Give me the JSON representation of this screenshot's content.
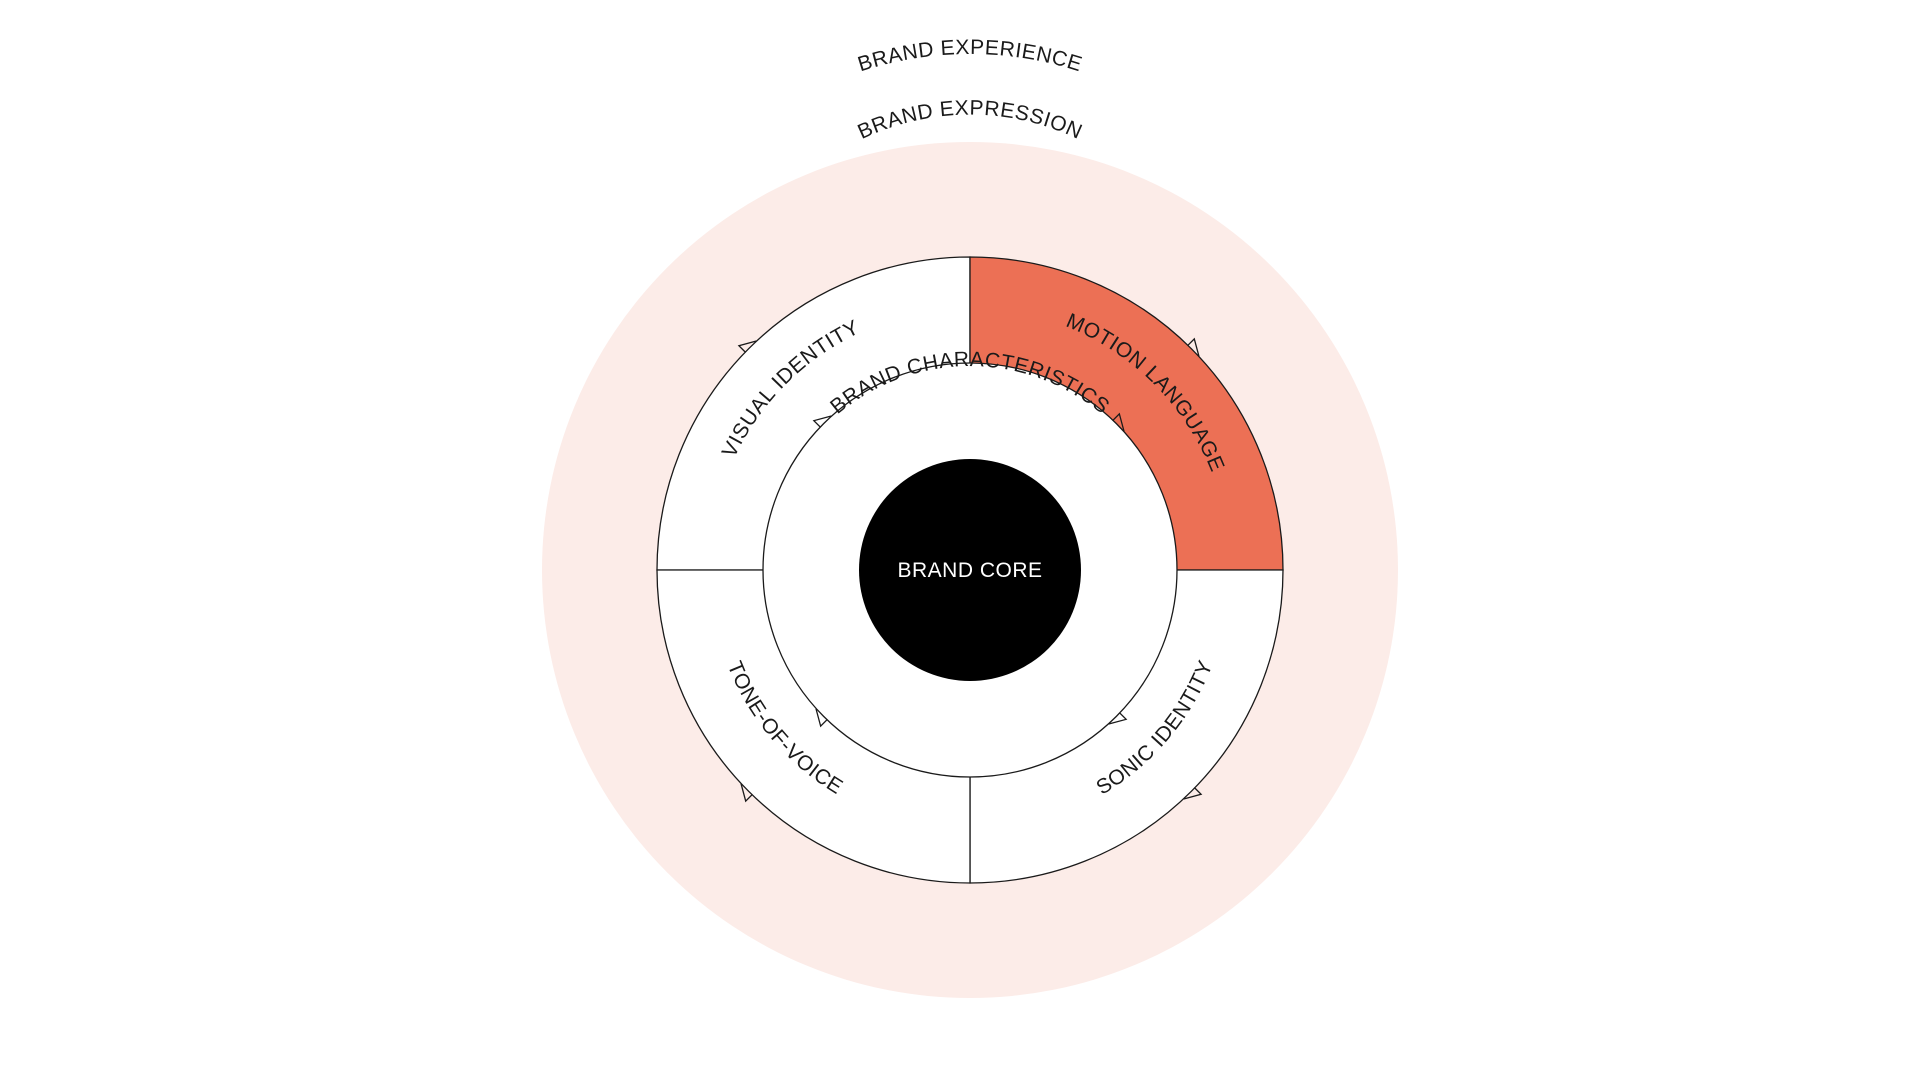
{
  "diagram": {
    "outer_label": "BRAND EXPERIENCE",
    "expression_label": "BRAND EXPRESSION",
    "characteristics_label": "BRAND CHARACTERISTICS",
    "core_label": "BRAND CORE",
    "segments": [
      {
        "key": "visual",
        "label": "VISUAL IDENTITY",
        "highlighted": false
      },
      {
        "key": "motion",
        "label": "MOTION LANGUAGE",
        "highlighted": true
      },
      {
        "key": "sonic",
        "label": "SONIC IDENTITY",
        "highlighted": false
      },
      {
        "key": "tone",
        "label": "TONE-OF-VOICE",
        "highlighted": false
      }
    ]
  },
  "colors": {
    "background": "#ffffff",
    "expression_fill": "#fcece8",
    "highlight_fill": "#ec7055",
    "core_fill": "#000000",
    "stroke": "#1a1a1a",
    "text": "#1a1a1a",
    "core_text": "#ffffff"
  }
}
